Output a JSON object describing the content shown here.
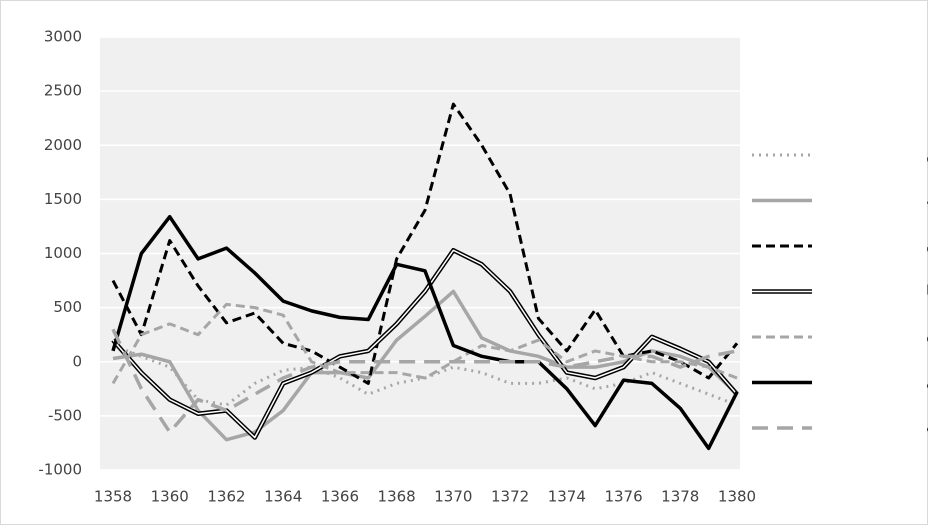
{
  "chart_data": {
    "type": "line",
    "x": [
      1358,
      1359,
      1360,
      1361,
      1362,
      1363,
      1364,
      1365,
      1366,
      1367,
      1368,
      1369,
      1370,
      1371,
      1372,
      1373,
      1374,
      1375,
      1376,
      1377,
      1378,
      1379,
      1380
    ],
    "xlim": [
      1358,
      1380
    ],
    "xticks": [
      1358,
      1360,
      1362,
      1364,
      1366,
      1368,
      1370,
      1372,
      1374,
      1376,
      1378,
      1380
    ],
    "ylim": [
      -1000,
      3000
    ],
    "yticks": [
      -1000,
      -500,
      0,
      500,
      1000,
      1500,
      2000,
      2500,
      3000
    ],
    "grid": true,
    "legend": "right",
    "series": [
      {
        "name": "چین",
        "color": "#a6a6a6",
        "style": "dotted",
        "width": 3,
        "values": [
          150,
          50,
          -50,
          -350,
          -400,
          -200,
          -80,
          -50,
          -150,
          -300,
          -200,
          -150,
          -50,
          -100,
          -200,
          -200,
          -150,
          -250,
          -200,
          -100,
          -200,
          -300,
          -400
        ]
      },
      {
        "name": "ترکیه",
        "color": "#a6a6a6",
        "style": "solid",
        "width": 3.5,
        "values": [
          30,
          70,
          0,
          -450,
          -720,
          -650,
          -450,
          -100,
          -100,
          -150,
          200,
          420,
          650,
          220,
          100,
          50,
          -50,
          -50,
          0,
          100,
          50,
          -50,
          -300
        ]
      },
      {
        "name": "آلمان",
        "color": "#000000",
        "style": "dashed",
        "width": 3,
        "values": [
          750,
          250,
          1120,
          700,
          360,
          450,
          170,
          100,
          -50,
          -200,
          950,
          1400,
          2380,
          2000,
          1550,
          400,
          100,
          480,
          50,
          100,
          0,
          -150,
          170
        ]
      },
      {
        "name": "ایتالیا",
        "color": "#000000",
        "style": "double",
        "width": 4.5,
        "values": [
          200,
          -100,
          -350,
          -480,
          -450,
          -700,
          -200,
          -100,
          50,
          100,
          350,
          650,
          1030,
          900,
          650,
          250,
          -100,
          -150,
          -50,
          230,
          120,
          0,
          -300
        ]
      },
      {
        "name": "ایالات متحده",
        "color": "#a6a6a6",
        "style": "dashed",
        "width": 3,
        "values": [
          -200,
          250,
          350,
          250,
          530,
          500,
          430,
          0,
          -100,
          -100,
          -100,
          -150,
          0,
          150,
          100,
          200,
          0,
          100,
          50,
          0,
          0,
          -50,
          -150
        ]
      },
      {
        "name": "کره جنوبی",
        "color": "#000000",
        "style": "solid",
        "width": 3.5,
        "values": [
          100,
          1000,
          1340,
          950,
          1050,
          820,
          560,
          470,
          410,
          390,
          900,
          840,
          150,
          50,
          0,
          0,
          -250,
          -590,
          -170,
          -200,
          -430,
          -800,
          -280
        ]
      },
      {
        "name": "امارات",
        "color": "#a6a6a6",
        "style": "long-dash",
        "width": 3.5,
        "values": [
          300,
          -250,
          -650,
          -350,
          -450,
          -300,
          -150,
          -50,
          0,
          0,
          0,
          0,
          0,
          0,
          0,
          0,
          -50,
          0,
          50,
          50,
          -50,
          50,
          100
        ]
      }
    ]
  }
}
